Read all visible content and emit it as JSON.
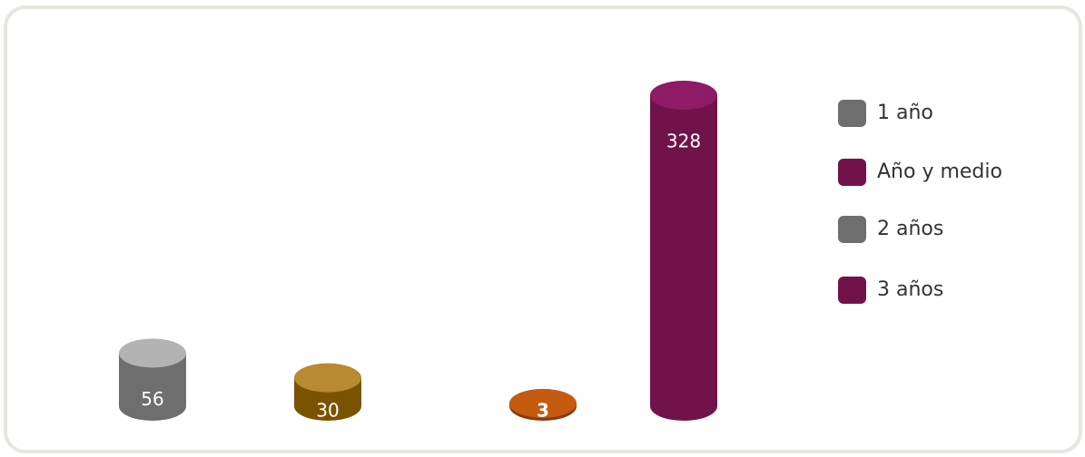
{
  "chart_data": {
    "type": "cylinder-bar",
    "categories": [
      "1 año",
      "Año y medio",
      "2 años",
      "3 años"
    ],
    "values": [
      56,
      30,
      3,
      328
    ],
    "colors": [
      "#6e6e6e",
      "#7a5300",
      "#8a3a0c",
      "#72124b"
    ],
    "top_colors": [
      "#b3b3b3",
      "#b88a32",
      "#c55a11",
      "#8f1a66"
    ],
    "legend_colors": [
      "#6e6e6e",
      "#72124b",
      "#6e6e6e",
      "#72124b"
    ],
    "bold_labels": [
      false,
      false,
      true,
      false
    ]
  }
}
